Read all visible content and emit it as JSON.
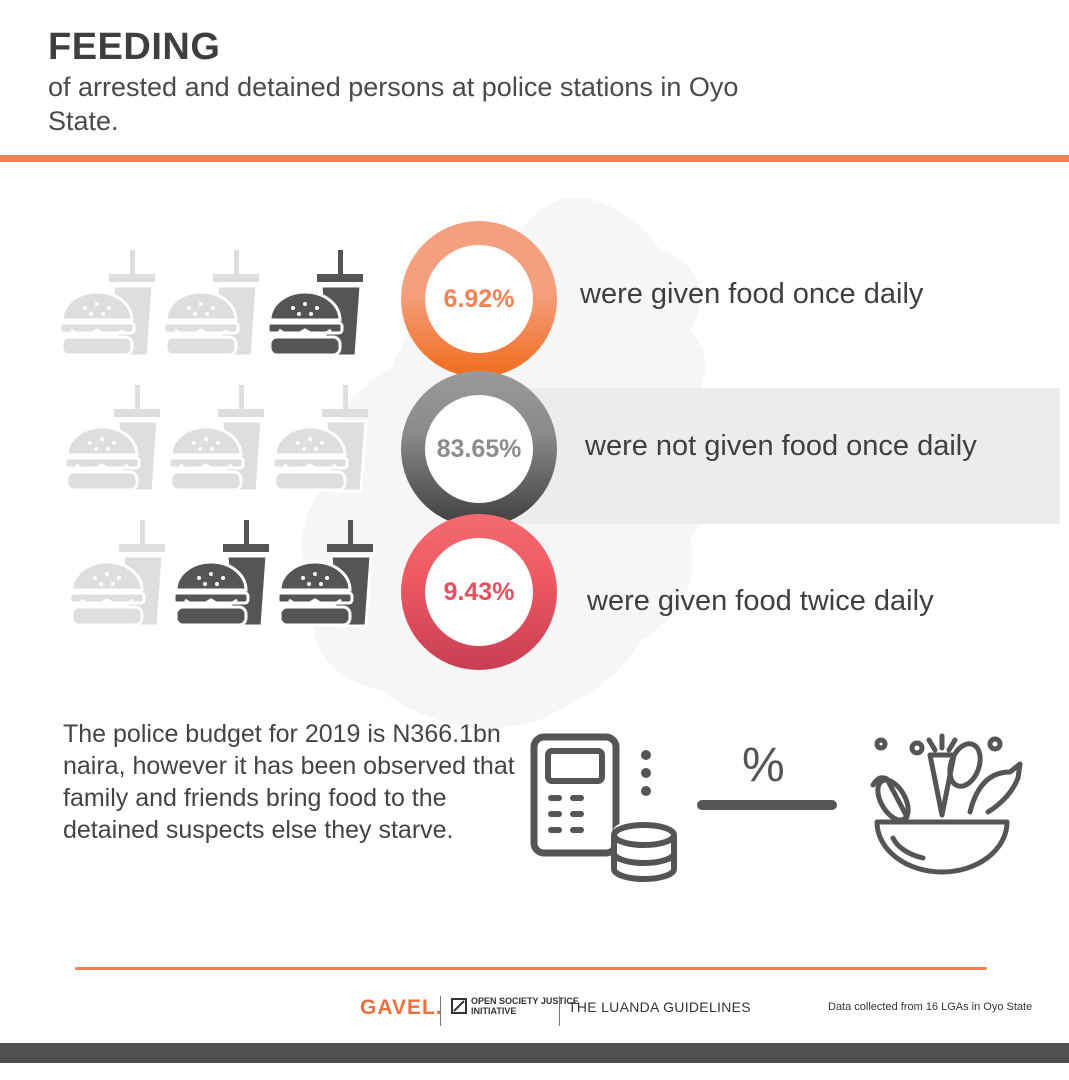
{
  "header": {
    "title": "FEEDING",
    "subtitle": "of arrested and detained persons at police stations in Oyo State."
  },
  "colors": {
    "accent": "#ef8355",
    "dark_icon": "#555555",
    "light_icon": "#dedede"
  },
  "stats": [
    {
      "value": "6.92%",
      "label": "were given food once daily",
      "ring_top": "#f4a07e",
      "ring_bottom": "#f26b1d",
      "text_color": "#ef8355",
      "meals_dark": 1
    },
    {
      "value": "83.65%",
      "label": "were not given food once daily",
      "ring_top": "#9a9a9a",
      "ring_bottom": "#4a4a4a",
      "text_color": "#8c8c8c",
      "meals_dark": 0
    },
    {
      "value": "9.43%",
      "label": "were given food twice daily",
      "ring_top": "#f26b70",
      "ring_bottom": "#cf4356",
      "text_color": "#e4505e",
      "meals_dark": 2
    }
  ],
  "budget": {
    "text": "The police budget for 2019 is N366.1bn naira, however it has been observed that family and friends bring food to the detained suspects else they starve.",
    "percent_symbol": "%"
  },
  "footer": {
    "gavel": "GAVEL.",
    "osji": "OPEN SOCIETY JUSTICE INITIATIVE",
    "luanda": "THE LUANDA GUIDELINES",
    "data_note": "Data collected from  16 LGAs in Oyo State"
  }
}
